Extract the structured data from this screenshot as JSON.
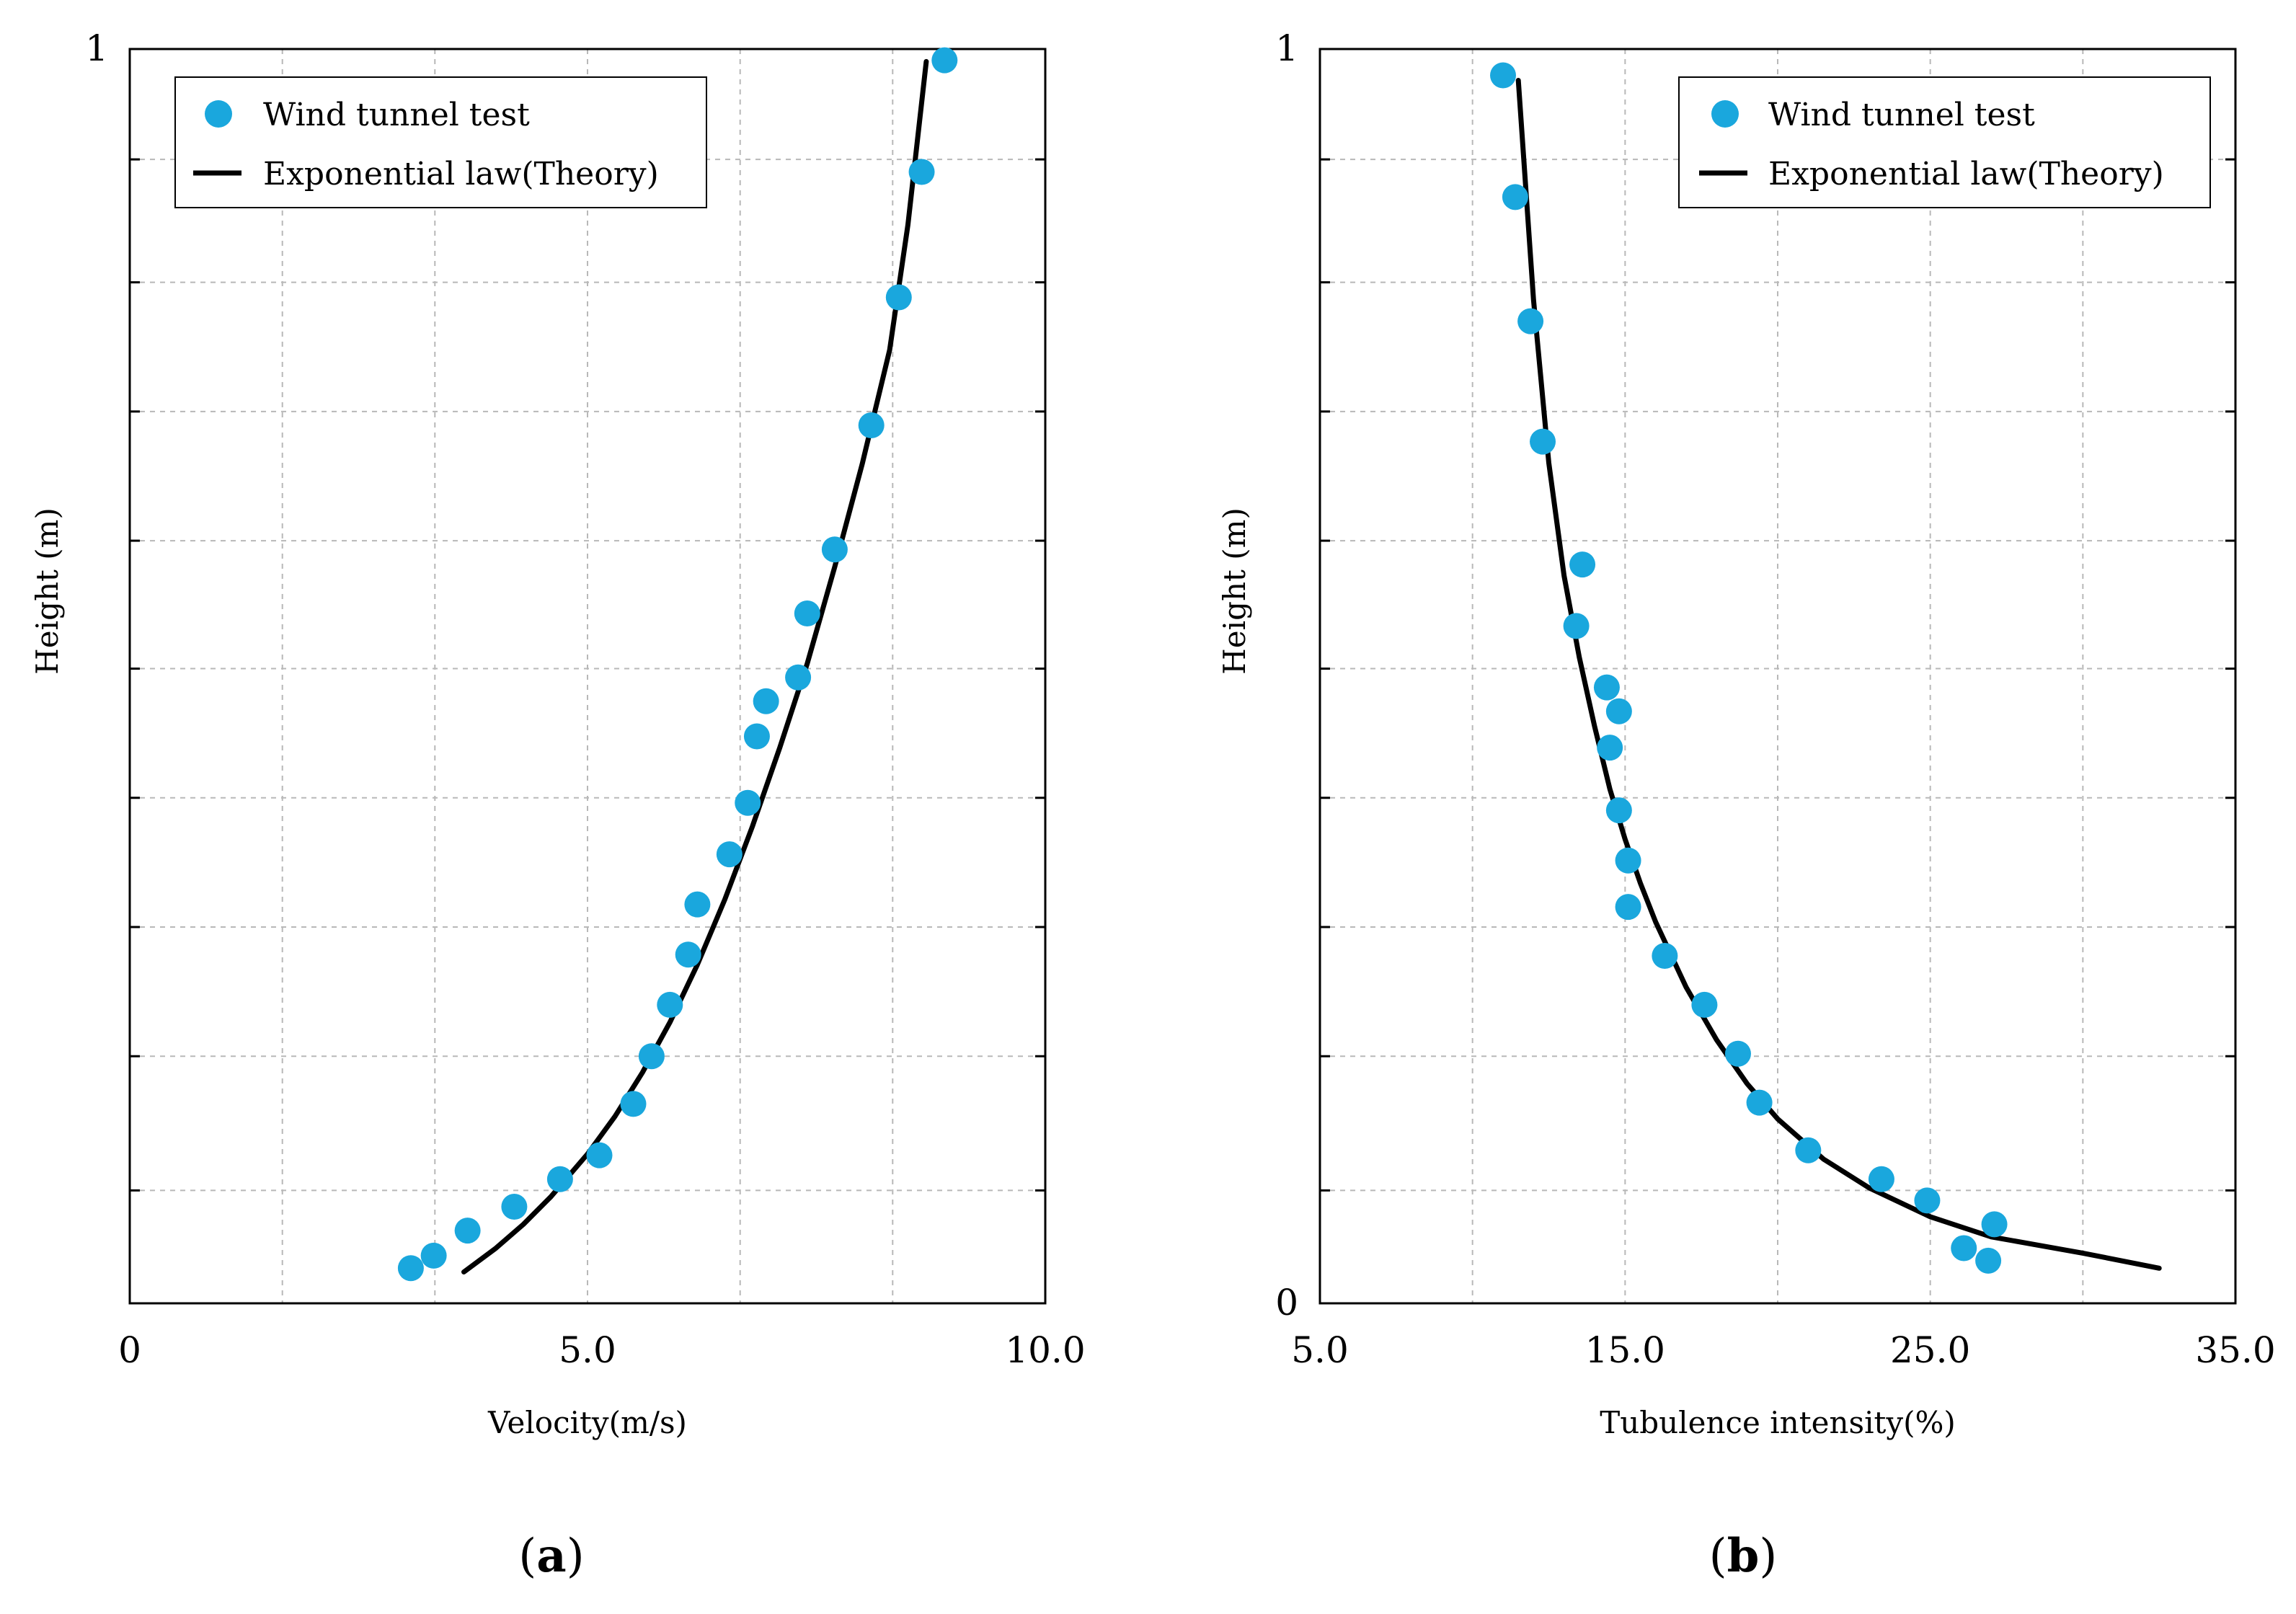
{
  "colors": {
    "marker": "#1aa7dd",
    "line": "#000000",
    "grid": "#b8b8b8"
  },
  "chart_data": [
    {
      "type": "scatter",
      "panel": "a",
      "caption_letter": "a",
      "title": "",
      "xlabel": "Velocity(m/s)",
      "ylabel": "Height (m)",
      "xlim": [
        0,
        10
      ],
      "ylim": [
        0,
        1
      ],
      "x_grid_ticks": [
        0,
        1.667,
        3.333,
        5,
        6.667,
        8.333,
        10
      ],
      "y_grid_ticks": [
        0.09,
        0.197,
        0.3,
        0.403,
        0.506,
        0.608,
        0.711,
        0.814,
        0.912
      ],
      "x_tick_labels": [
        {
          "value": 0,
          "label": "0"
        },
        {
          "value": 5,
          "label": "5.0"
        },
        {
          "value": 10,
          "label": "10.0"
        }
      ],
      "y_tick_labels": [
        {
          "value": 1,
          "label": "1"
        }
      ],
      "legend": {
        "position": "top-left",
        "entries": [
          "Wind tunnel test",
          "Exponential law(Theory)"
        ]
      },
      "series": [
        {
          "name": "Wind tunnel test",
          "kind": "scatter",
          "x": [
            3.07,
            3.32,
            3.69,
            4.2,
            4.7,
            5.13,
            5.5,
            5.7,
            5.9,
            6.1,
            6.2,
            6.55,
            6.75,
            6.85,
            6.95,
            7.3,
            7.4,
            7.7,
            8.1,
            8.4,
            8.65,
            8.9
          ],
          "y": [
            0.028,
            0.038,
            0.058,
            0.077,
            0.099,
            0.118,
            0.159,
            0.197,
            0.238,
            0.278,
            0.318,
            0.358,
            0.399,
            0.452,
            0.48,
            0.499,
            0.55,
            0.601,
            0.7,
            0.802,
            0.902,
            0.991
          ]
        },
        {
          "name": "Exponential law(Theory)",
          "kind": "line",
          "x": [
            3.65,
            4.0,
            4.3,
            4.6,
            5.0,
            5.3,
            5.6,
            5.9,
            6.2,
            6.5,
            6.8,
            7.1,
            7.4,
            7.7,
            8.0,
            8.3,
            8.5,
            8.7
          ],
          "y": [
            0.025,
            0.044,
            0.063,
            0.085,
            0.119,
            0.149,
            0.184,
            0.224,
            0.27,
            0.322,
            0.38,
            0.443,
            0.51,
            0.587,
            0.669,
            0.76,
            0.86,
            0.99
          ]
        }
      ]
    },
    {
      "type": "scatter",
      "panel": "b",
      "caption_letter": "b",
      "title": "",
      "xlabel": "Tubulence intensity(%)",
      "ylabel": "Height (m)",
      "xlim": [
        5,
        35
      ],
      "ylim": [
        0,
        1
      ],
      "x_grid_ticks": [
        5,
        10,
        15,
        20,
        25,
        30,
        35
      ],
      "y_grid_ticks": [
        0.09,
        0.197,
        0.3,
        0.403,
        0.506,
        0.608,
        0.711,
        0.814,
        0.912
      ],
      "x_tick_labels": [
        {
          "value": 5,
          "label": "5.0"
        },
        {
          "value": 15,
          "label": "15.0"
        },
        {
          "value": 25,
          "label": "25.0"
        },
        {
          "value": 35,
          "label": "35.0"
        }
      ],
      "y_tick_labels": [
        {
          "value": 1,
          "label": "1"
        },
        {
          "value": 0,
          "label": "0"
        }
      ],
      "legend": {
        "position": "top-right",
        "entries": [
          "Wind tunnel test",
          "Exponential law(Theory)"
        ]
      },
      "series": [
        {
          "name": "Wind tunnel test",
          "kind": "scatter",
          "x": [
            11.0,
            11.4,
            11.9,
            12.3,
            13.6,
            13.4,
            14.4,
            14.8,
            14.5,
            14.8,
            15.1,
            15.1,
            16.3,
            17.6,
            18.7,
            19.4,
            21.0,
            23.4,
            24.9,
            27.1,
            26.1,
            26.9
          ],
          "y": [
            0.979,
            0.882,
            0.783,
            0.687,
            0.589,
            0.54,
            0.491,
            0.472,
            0.443,
            0.393,
            0.353,
            0.316,
            0.277,
            0.238,
            0.199,
            0.16,
            0.122,
            0.099,
            0.082,
            0.063,
            0.044,
            0.034
          ]
        },
        {
          "name": "Exponential law(Theory)",
          "kind": "line",
          "x": [
            11.5,
            12.0,
            12.5,
            13.0,
            13.5,
            14.0,
            14.5,
            15.0,
            15.5,
            16.0,
            17.0,
            18.0,
            19.0,
            20.0,
            21.5,
            23.0,
            25.0,
            27.0,
            30.0,
            32.5
          ],
          "y": [
            0.975,
            0.8,
            0.67,
            0.58,
            0.515,
            0.46,
            0.41,
            0.37,
            0.335,
            0.304,
            0.252,
            0.21,
            0.175,
            0.147,
            0.115,
            0.092,
            0.069,
            0.053,
            0.04,
            0.028
          ]
        }
      ]
    }
  ]
}
